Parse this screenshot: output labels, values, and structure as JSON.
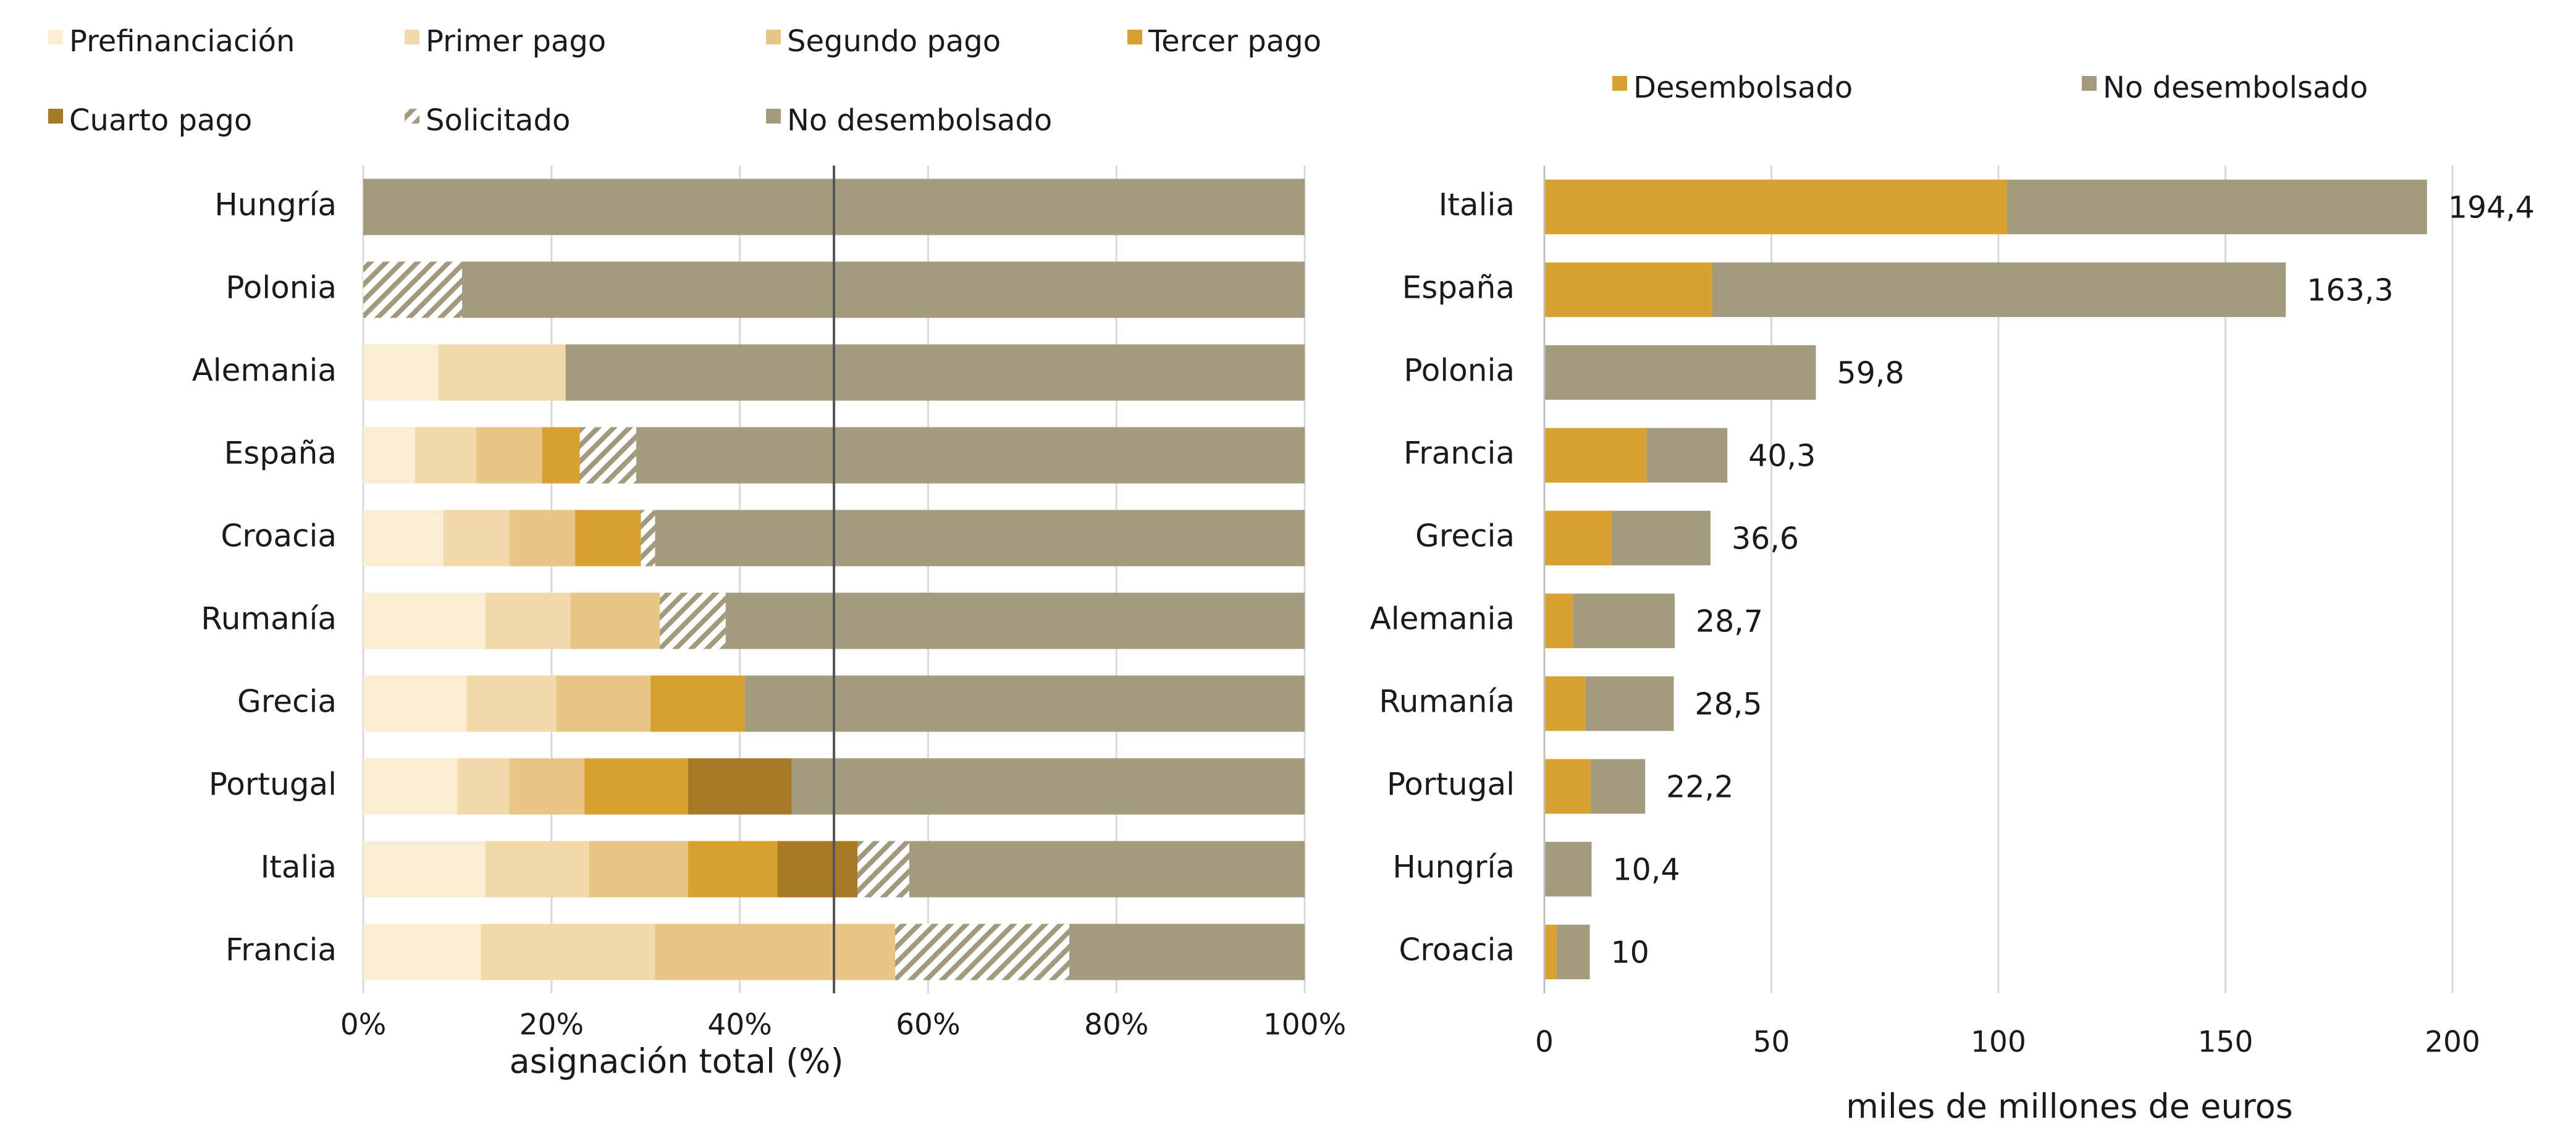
{
  "chart_data": [
    {
      "type": "bar",
      "orientation": "horizontal",
      "stacked": true,
      "categories": [
        "Hungría",
        "Polonia",
        "Alemania",
        "España",
        "Croacia",
        "Rumanía",
        "Grecia",
        "Portugal",
        "Italia",
        "Francia"
      ],
      "series": [
        {
          "name": "Prefinanciación",
          "color": "#fbecd4",
          "pattern": false,
          "values": [
            0,
            0,
            8,
            5.5,
            8.5,
            13,
            11,
            10,
            13,
            12.5
          ]
        },
        {
          "name": "Primer pago",
          "color": "#f1d9a9",
          "pattern": false,
          "values": [
            0,
            0,
            13.5,
            6.5,
            7,
            9,
            9.5,
            5.5,
            11,
            18.5
          ]
        },
        {
          "name": "Segundo pago",
          "color": "#e9c586",
          "pattern": false,
          "values": [
            0,
            0,
            0,
            7,
            7,
            9.5,
            10,
            8,
            10.5,
            25.5
          ]
        },
        {
          "name": "Tercer pago",
          "color": "#d8a131",
          "pattern": false,
          "values": [
            0,
            0,
            0,
            4,
            7,
            0,
            10,
            11,
            9.5,
            0
          ]
        },
        {
          "name": "Cuarto pago",
          "color": "#a87924",
          "pattern": false,
          "values": [
            0,
            0,
            0,
            0,
            0,
            0,
            0,
            11,
            8.5,
            0
          ]
        },
        {
          "name": "Solicitado",
          "color": "#a39a7e",
          "pattern": true,
          "values": [
            0,
            10.5,
            0,
            6,
            1.5,
            7,
            0,
            0,
            5.5,
            18.5
          ]
        },
        {
          "name": "No desembolsado",
          "color": "#a39b7e",
          "pattern": false,
          "values": [
            100,
            89.5,
            78.5,
            71,
            69,
            61.5,
            59.5,
            54.5,
            42,
            25
          ]
        }
      ],
      "xlim": [
        0,
        100
      ],
      "x_ticks": [
        "0%",
        "20%",
        "40%",
        "60%",
        "80%",
        "100%"
      ],
      "reference_line_x": 50,
      "xlabel": "asignación total (%)",
      "ylabel": "",
      "grid": true,
      "legend": "top"
    },
    {
      "type": "bar",
      "orientation": "horizontal",
      "stacked": true,
      "categories": [
        "Italia",
        "España",
        "Polonia",
        "Francia",
        "Grecia",
        "Alemania",
        "Rumanía",
        "Portugal",
        "Hungría",
        "Croacia"
      ],
      "series": [
        {
          "name": "Desembolsado",
          "color": "#d8a131",
          "values": [
            101.9,
            37.0,
            0,
            22.5,
            14.8,
            6.3,
            9.0,
            10.2,
            0,
            2.7
          ]
        },
        {
          "name": "No desembolsado",
          "color": "#a39b7e",
          "values": [
            92.5,
            126.3,
            59.8,
            17.8,
            21.8,
            22.4,
            19.5,
            12.0,
            10.4,
            7.3
          ]
        }
      ],
      "totals": [
        194.4,
        163.3,
        59.8,
        40.3,
        36.6,
        28.7,
        28.5,
        22.2,
        10.4,
        10
      ],
      "total_labels": [
        "194,4",
        "163,3",
        "59,8",
        "40,3",
        "36,6",
        "28,7",
        "28,5",
        "22,2",
        "10,4",
        "10"
      ],
      "xlim": [
        0,
        200
      ],
      "x_ticks": [
        "0",
        "50",
        "100",
        "150",
        "200"
      ],
      "xlabel": "miles de millones de euros",
      "ylabel": "",
      "grid": true,
      "legend": "top"
    }
  ]
}
